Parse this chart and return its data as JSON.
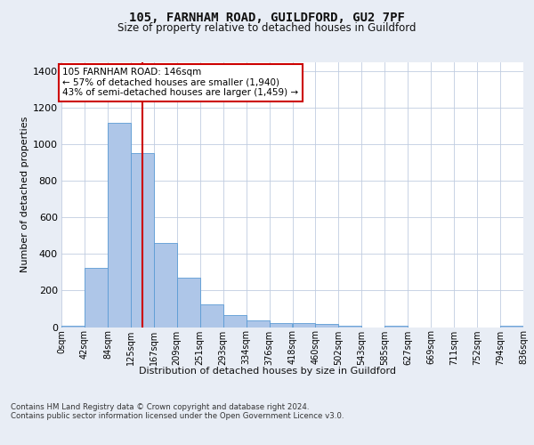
{
  "title1": "105, FARNHAM ROAD, GUILDFORD, GU2 7PF",
  "title2": "Size of property relative to detached houses in Guildford",
  "xlabel": "Distribution of detached houses by size in Guildford",
  "ylabel": "Number of detached properties",
  "bin_labels": [
    "0sqm",
    "42sqm",
    "84sqm",
    "125sqm",
    "167sqm",
    "209sqm",
    "251sqm",
    "293sqm",
    "334sqm",
    "376sqm",
    "418sqm",
    "460sqm",
    "502sqm",
    "543sqm",
    "585sqm",
    "627sqm",
    "669sqm",
    "711sqm",
    "752sqm",
    "794sqm",
    "836sqm"
  ],
  "bar_heights": [
    5,
    325,
    1120,
    955,
    460,
    270,
    125,
    65,
    35,
    20,
    20,
    15,
    5,
    0,
    5,
    0,
    0,
    0,
    0,
    5
  ],
  "bar_color": "#aec6e8",
  "bar_edge_color": "#5b9bd5",
  "vline_x": 146,
  "vline_color": "#cc0000",
  "annotation_line1": "105 FARNHAM ROAD: 146sqm",
  "annotation_line2": "← 57% of detached houses are smaller (1,940)",
  "annotation_line3": "43% of semi-detached houses are larger (1,459) →",
  "annotation_box_color": "#ffffff",
  "annotation_box_edge": "#cc0000",
  "ylim": [
    0,
    1450
  ],
  "yticks": [
    0,
    200,
    400,
    600,
    800,
    1000,
    1200,
    1400
  ],
  "bg_color": "#e8edf5",
  "plot_bg_color": "#ffffff",
  "footer": "Contains HM Land Registry data © Crown copyright and database right 2024.\nContains public sector information licensed under the Open Government Licence v3.0.",
  "bin_width": 41.86
}
